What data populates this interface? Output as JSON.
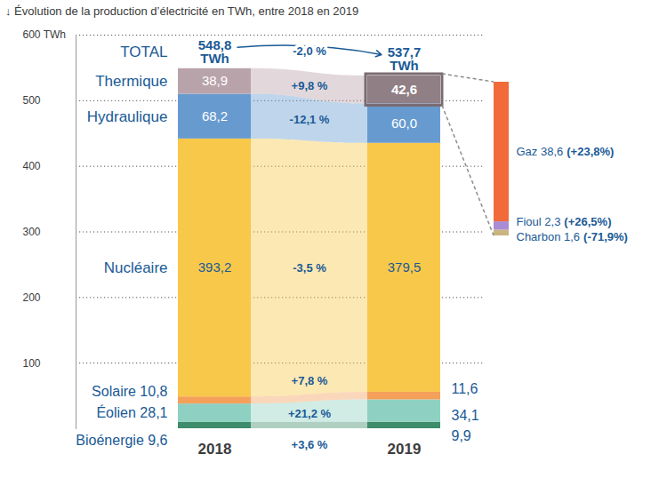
{
  "chart_data": {
    "type": "bar",
    "stacked": true,
    "data_labels": true,
    "grid": true,
    "title": "↓ Évolution de la production d’électricité en TWh, entre 2018 en 2019",
    "categories": [
      "2018",
      "2019"
    ],
    "ylim": [
      0,
      600
    ],
    "yticks": [
      100,
      200,
      300,
      400,
      500,
      {
        "value": 600,
        "label": "600 TWh"
      }
    ],
    "series": [
      {
        "name": "Bioénergie",
        "color": "#3d8c6b",
        "values": [
          9.6,
          9.9
        ],
        "value_labels": [
          "9,6",
          "9,9"
        ],
        "change_label": "+3,6 %"
      },
      {
        "name": "Éolien",
        "color": "#8ed1c2",
        "values": [
          28.1,
          34.1
        ],
        "value_labels": [
          "28,1",
          "34,1"
        ],
        "change_label": "+21,2 %"
      },
      {
        "name": "Solaire",
        "color": "#f4a05a",
        "values": [
          10.8,
          11.6
        ],
        "value_labels": [
          "10,8",
          "11,6"
        ],
        "change_label": "+7,8 %"
      },
      {
        "name": "Nucléaire",
        "color": "#f8c84a",
        "values": [
          393.2,
          379.5
        ],
        "value_labels": [
          "393,2",
          "379,5"
        ],
        "change_label": "-3,5 %"
      },
      {
        "name": "Hydraulique",
        "color": "#679bd0",
        "values": [
          68.2,
          60.0
        ],
        "value_labels": [
          "68,2",
          "60,0"
        ],
        "change_label": "-12,1 %"
      },
      {
        "name": "Thermique",
        "color": "#b9a3ab",
        "values": [
          38.9,
          42.6
        ],
        "value_labels": [
          "38,9",
          "42,6"
        ],
        "change_label": "+9,8 %",
        "breakdown": {
          "category": "2019",
          "series": [
            {
              "name": "Charbon",
              "color": "#cbb57f",
              "value": 1.6,
              "value_label": "1,6",
              "change_label": "(-71,9%)"
            },
            {
              "name": "Fioul",
              "color": "#a98cd4",
              "value": 2.3,
              "value_label": "2,3",
              "change_label": "(+26,5%)"
            },
            {
              "name": "Gaz",
              "color": "#f2693a",
              "value": 38.6,
              "value_label": "38,6",
              "change_label": "(+23,8%)"
            }
          ]
        }
      }
    ],
    "total": {
      "label": "TOTAL",
      "values": [
        548.8,
        537.7
      ],
      "value_labels": [
        "548,8\nTWh",
        "537,7\nTWh"
      ],
      "change_label": "-2,0 %"
    }
  }
}
